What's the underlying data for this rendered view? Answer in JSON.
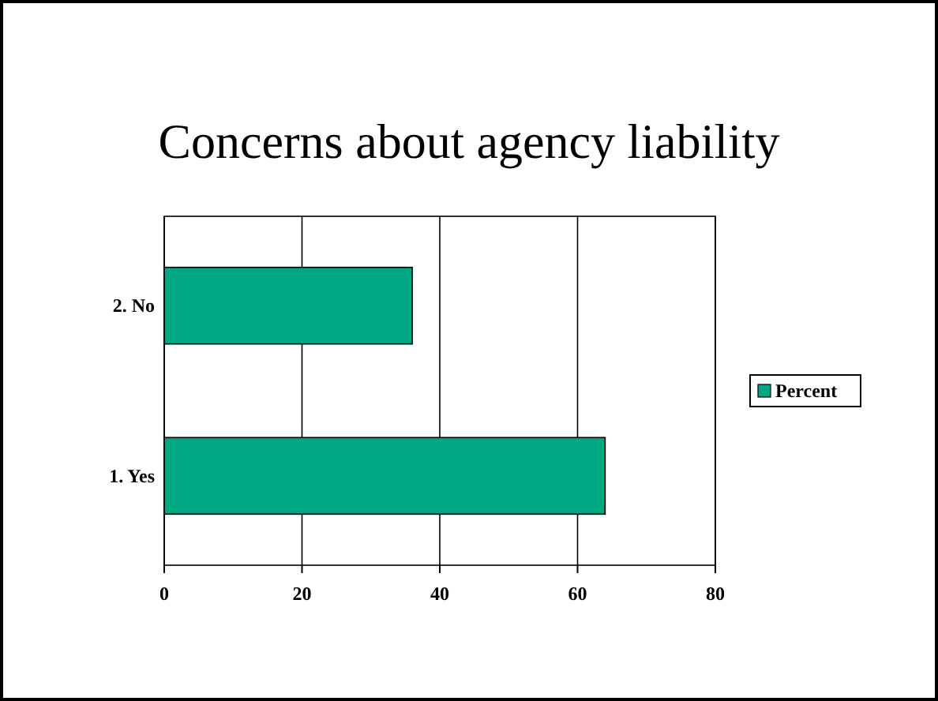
{
  "chart_data": {
    "type": "bar",
    "title": "Concerns about agency liability",
    "orientation": "horizontal",
    "categories": [
      "2. No",
      "1. Yes"
    ],
    "series": [
      {
        "name": "Percent",
        "color": "#00a884",
        "values": [
          36,
          64
        ]
      }
    ],
    "xlim": [
      0,
      80
    ],
    "xticks": [
      0,
      20,
      40,
      60,
      80
    ],
    "grid": "x",
    "legend": "right"
  }
}
